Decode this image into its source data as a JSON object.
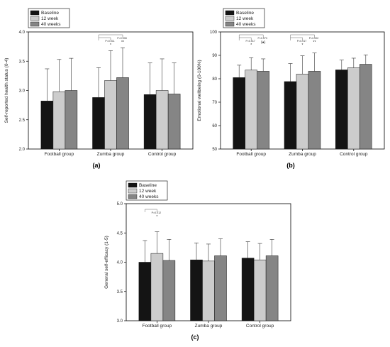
{
  "chart_data": [
    {
      "type": "bar",
      "panel_label": "(a)",
      "ylabel": "Self-reported health status (0-4)",
      "ylim": [
        2.0,
        4.0
      ],
      "yticks": [
        "2.0",
        "2.5",
        "3.0",
        "3.5",
        "4.0"
      ],
      "categories": [
        "Football group",
        "Zumba group",
        "Control group"
      ],
      "legend": [
        "Baseline",
        "12 week",
        "40 weeks"
      ],
      "series": [
        {
          "name": "Baseline",
          "values": [
            2.82,
            2.88,
            2.93
          ],
          "err": [
            3.37,
            3.39,
            3.47
          ]
        },
        {
          "name": "12 week",
          "values": [
            2.98,
            3.17,
            3.0
          ],
          "err": [
            3.53,
            3.68,
            3.54
          ]
        },
        {
          "name": "40 weeks",
          "values": [
            3.0,
            3.22,
            2.94
          ],
          "err": [
            3.55,
            3.73,
            3.47
          ]
        }
      ],
      "annotations": [
        {
          "text": "P=0.011",
          "sig": "*",
          "group": 1,
          "from": 0,
          "to": 1
        },
        {
          "text": "P=0.008",
          "sig": "**",
          "group": 1,
          "from": 0,
          "to": 2
        }
      ]
    },
    {
      "type": "bar",
      "panel_label": "(b)",
      "ylabel": "Emotional wellbeing (0-100%)",
      "ylim": [
        50,
        100
      ],
      "yticks": [
        "50",
        "60",
        "70",
        "80",
        "90",
        "100"
      ],
      "categories": [
        "Football group",
        "Zumba group",
        "Control group"
      ],
      "legend": [
        "Baseline",
        "12 week",
        "40 weeks"
      ],
      "series": [
        {
          "name": "Baseline",
          "values": [
            80.5,
            78.8,
            83.8
          ],
          "err": [
            85.8,
            86.5,
            88.0
          ]
        },
        {
          "name": "12 week",
          "values": [
            83.7,
            82.0,
            84.7
          ],
          "err": [
            89.0,
            89.8,
            88.8
          ]
        },
        {
          "name": "40 weeks",
          "values": [
            83.2,
            83.2,
            86.2
          ],
          "err": [
            88.5,
            91.0,
            90.2
          ]
        }
      ],
      "annotations": [
        {
          "text": "P=0.017",
          "sig": "*",
          "group": 0,
          "from": 0,
          "to": 1
        },
        {
          "text": "P=0.073",
          "sig": "(●)",
          "group": 0,
          "from": 0,
          "to": 2
        },
        {
          "text": "P=0.017",
          "sig": "*",
          "group": 1,
          "from": 0,
          "to": 1
        },
        {
          "text": "P=0.002",
          "sig": "**",
          "group": 1,
          "from": 0,
          "to": 2
        }
      ]
    },
    {
      "type": "bar",
      "panel_label": "(c)",
      "ylabel": "General self-efficacy (1-5)",
      "ylim": [
        3.0,
        5.0
      ],
      "yticks": [
        "3.0",
        "3.5",
        "4.0",
        "4.5",
        "5.0"
      ],
      "categories": [
        "Football group",
        "Zumba group",
        "Control group"
      ],
      "legend": [
        "Baseline",
        "12 week",
        "40 weeks"
      ],
      "series": [
        {
          "name": "Baseline",
          "values": [
            4.0,
            4.04,
            4.07
          ],
          "err": [
            4.37,
            4.33,
            4.35
          ]
        },
        {
          "name": "12 week",
          "values": [
            4.15,
            4.02,
            4.04
          ],
          "err": [
            4.52,
            4.31,
            4.32
          ]
        },
        {
          "name": "40 weeks",
          "values": [
            4.03,
            4.11,
            4.11
          ],
          "err": [
            4.39,
            4.4,
            4.39
          ]
        }
      ],
      "annotations": [
        {
          "text": "P=0.012",
          "sig": "*",
          "group": 0,
          "from": 0,
          "to": 1
        }
      ]
    }
  ],
  "colors": {
    "Baseline": "#141414",
    "12 week": "#cccccc",
    "40 weeks": "#858585"
  }
}
